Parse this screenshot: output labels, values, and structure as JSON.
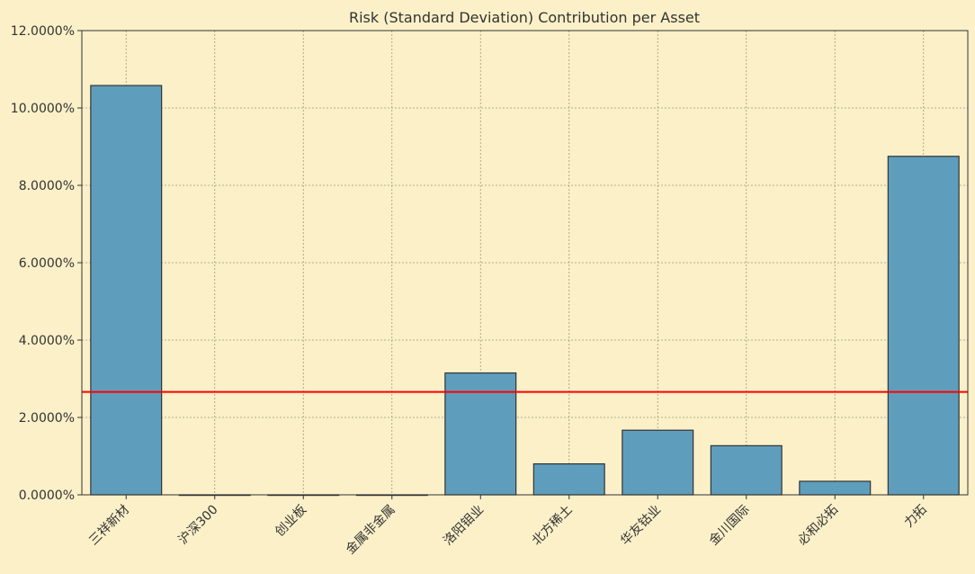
{
  "chart_data": {
    "type": "bar",
    "title": "Risk (Standard Deviation) Contribution per Asset",
    "xlabel": "",
    "ylabel": "",
    "categories": [
      "三祥新材",
      "沪深300",
      "创业板",
      "金属非金属",
      "洛阳钼业",
      "北方稀土",
      "华友钴业",
      "金川国际",
      "必和必拓",
      "力拓"
    ],
    "values": [
      10.58,
      0.0,
      0.0,
      0.0,
      3.15,
      0.8,
      1.67,
      1.27,
      0.35,
      8.75
    ],
    "y_ticks": [
      0,
      2,
      4,
      6,
      8,
      10,
      12
    ],
    "y_tick_labels": [
      "0.0000%",
      "2.0000%",
      "4.0000%",
      "6.0000%",
      "8.0000%",
      "10.0000%",
      "12.0000%"
    ],
    "ylim": [
      0,
      12
    ],
    "reference_line": 2.66,
    "grid": true,
    "colors": {
      "bar_fill": "#5f9dbd",
      "bar_edge": "#333333",
      "reference_line": "#ff0000",
      "background": "#fbf0c8"
    }
  }
}
